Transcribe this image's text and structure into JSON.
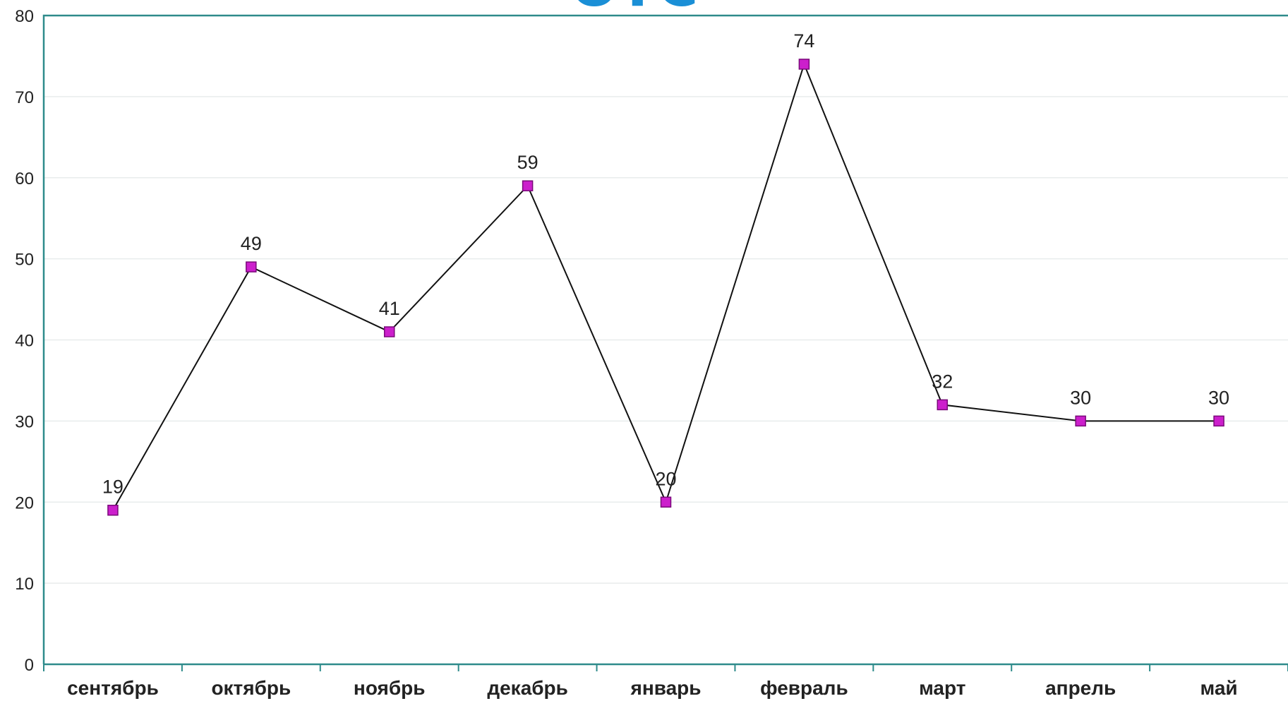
{
  "chart_data": {
    "type": "line",
    "title": "",
    "xlabel": "",
    "ylabel": "",
    "categories": [
      "сентябрь",
      "октябрь",
      "ноябрь",
      "декабрь",
      "январь",
      "февраль",
      "март",
      "апрель",
      "май"
    ],
    "series": [
      {
        "values": [
          19,
          49,
          41,
          59,
          20,
          74,
          32,
          30,
          30
        ],
        "color": "#cc1fcc",
        "line_color": "#111111"
      }
    ],
    "data_labels": [
      "19",
      "49",
      "41",
      "59",
      "20",
      "74",
      "32",
      "30",
      "30"
    ],
    "ylim": [
      0,
      80
    ],
    "y_ticks": [
      "0",
      "10",
      "20",
      "30",
      "40",
      "50",
      "60",
      "70",
      "80"
    ],
    "grid": true,
    "legend": "none",
    "colors": {
      "axis": "#2e8b8b",
      "marker": "#cc1fcc",
      "line": "#111111"
    }
  }
}
